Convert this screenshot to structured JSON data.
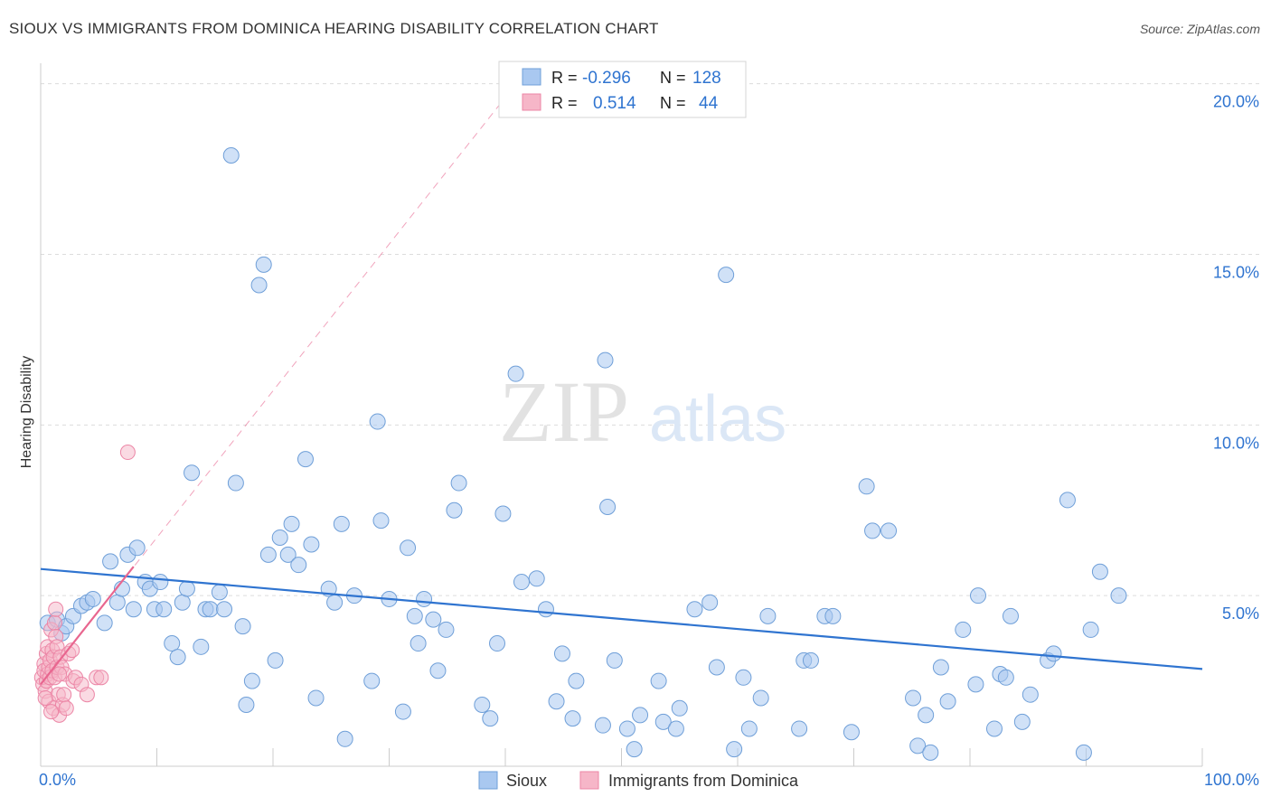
{
  "title": "SIOUX VS IMMIGRANTS FROM DOMINICA HEARING DISABILITY CORRELATION CHART",
  "source": "Source: ZipAtlas.com",
  "watermark": {
    "zip": "ZIP",
    "atlas": "atlas"
  },
  "colors": {
    "sioux_fill": "#a9c8f0",
    "sioux_stroke": "#6f9fd8",
    "sioux_line": "#2f74d0",
    "dominica_fill": "#f6b6c8",
    "dominica_stroke": "#ec86a6",
    "dominica_line": "#e8668f",
    "value_blue": "#2f74d0",
    "grid": "#dcdcdc"
  },
  "chart_data": {
    "type": "scatter",
    "title": "SIOUX VS IMMIGRANTS FROM DOMINICA HEARING DISABILITY CORRELATION CHART",
    "xlabel": "",
    "ylabel": "Hearing Disability",
    "xlim": [
      0,
      100
    ],
    "ylim": [
      0,
      20.6
    ],
    "x_tick_labels": [
      "0.0%",
      "100.0%"
    ],
    "y_ticks": [
      5,
      10,
      15,
      20
    ],
    "y_tick_labels": [
      "5.0%",
      "10.0%",
      "15.0%",
      "20.0%"
    ],
    "grid": true,
    "legend_stats": [
      {
        "label_r": "R =",
        "r": "-0.296",
        "label_n": "N =",
        "n": "128"
      },
      {
        "label_r": "R =",
        "r": "0.514",
        "label_n": "N =",
        "n": "44"
      }
    ],
    "series": [
      {
        "name": "Sioux",
        "trend": {
          "x": [
            0,
            100
          ],
          "y": [
            5.78,
            2.85
          ]
        },
        "points": [
          [
            0.6,
            4.2
          ],
          [
            1.4,
            4.3
          ],
          [
            1.8,
            3.9
          ],
          [
            2.2,
            4.1
          ],
          [
            2.8,
            4.4
          ],
          [
            3.5,
            4.7
          ],
          [
            4.0,
            4.8
          ],
          [
            4.5,
            4.9
          ],
          [
            5.5,
            4.2
          ],
          [
            6.0,
            6.0
          ],
          [
            6.6,
            4.8
          ],
          [
            7.0,
            5.2
          ],
          [
            7.5,
            6.2
          ],
          [
            8.0,
            4.6
          ],
          [
            8.3,
            6.4
          ],
          [
            9.0,
            5.4
          ],
          [
            9.4,
            5.2
          ],
          [
            9.8,
            4.6
          ],
          [
            10.3,
            5.4
          ],
          [
            10.6,
            4.6
          ],
          [
            11.3,
            3.6
          ],
          [
            11.8,
            3.2
          ],
          [
            12.2,
            4.8
          ],
          [
            12.6,
            5.2
          ],
          [
            13.0,
            8.6
          ],
          [
            13.8,
            3.5
          ],
          [
            14.2,
            4.6
          ],
          [
            14.6,
            4.6
          ],
          [
            15.4,
            5.1
          ],
          [
            15.8,
            4.6
          ],
          [
            16.4,
            17.9
          ],
          [
            16.8,
            8.3
          ],
          [
            17.4,
            4.1
          ],
          [
            17.7,
            1.8
          ],
          [
            18.2,
            2.5
          ],
          [
            18.8,
            14.1
          ],
          [
            19.2,
            14.7
          ],
          [
            19.6,
            6.2
          ],
          [
            20.2,
            3.1
          ],
          [
            20.6,
            6.7
          ],
          [
            21.3,
            6.2
          ],
          [
            21.6,
            7.1
          ],
          [
            22.2,
            5.9
          ],
          [
            22.8,
            9.0
          ],
          [
            23.3,
            6.5
          ],
          [
            23.7,
            2.0
          ],
          [
            24.8,
            5.2
          ],
          [
            25.3,
            4.8
          ],
          [
            25.9,
            7.1
          ],
          [
            26.2,
            0.8
          ],
          [
            27.0,
            5.0
          ],
          [
            28.5,
            2.5
          ],
          [
            29.0,
            10.1
          ],
          [
            29.3,
            7.2
          ],
          [
            30.0,
            4.9
          ],
          [
            31.2,
            1.6
          ],
          [
            31.6,
            6.4
          ],
          [
            32.2,
            4.4
          ],
          [
            32.5,
            3.6
          ],
          [
            33.0,
            4.9
          ],
          [
            33.8,
            4.3
          ],
          [
            34.2,
            2.8
          ],
          [
            34.9,
            4.0
          ],
          [
            35.6,
            7.5
          ],
          [
            36.0,
            8.3
          ],
          [
            38.0,
            1.8
          ],
          [
            38.7,
            1.4
          ],
          [
            39.3,
            3.6
          ],
          [
            39.8,
            7.4
          ],
          [
            40.9,
            11.5
          ],
          [
            41.4,
            5.4
          ],
          [
            42.7,
            5.5
          ],
          [
            43.5,
            4.6
          ],
          [
            44.4,
            1.9
          ],
          [
            44.9,
            3.3
          ],
          [
            45.8,
            1.4
          ],
          [
            46.1,
            2.5
          ],
          [
            48.4,
            1.2
          ],
          [
            48.6,
            11.9
          ],
          [
            48.8,
            7.6
          ],
          [
            49.4,
            3.1
          ],
          [
            50.5,
            1.1
          ],
          [
            51.1,
            0.5
          ],
          [
            51.6,
            1.5
          ],
          [
            53.2,
            2.5
          ],
          [
            53.6,
            1.3
          ],
          [
            54.7,
            1.1
          ],
          [
            55.0,
            1.7
          ],
          [
            56.3,
            4.6
          ],
          [
            57.6,
            4.8
          ],
          [
            58.2,
            2.9
          ],
          [
            59.0,
            14.4
          ],
          [
            59.7,
            0.5
          ],
          [
            60.5,
            2.6
          ],
          [
            61.0,
            1.1
          ],
          [
            62.0,
            2.0
          ],
          [
            62.6,
            4.4
          ],
          [
            65.3,
            1.1
          ],
          [
            65.7,
            3.1
          ],
          [
            66.3,
            3.1
          ],
          [
            67.5,
            4.4
          ],
          [
            68.2,
            4.4
          ],
          [
            69.8,
            1.0
          ],
          [
            71.1,
            8.2
          ],
          [
            71.6,
            6.9
          ],
          [
            73.0,
            6.9
          ],
          [
            75.1,
            2.0
          ],
          [
            75.5,
            0.6
          ],
          [
            76.2,
            1.5
          ],
          [
            76.6,
            0.4
          ],
          [
            77.5,
            2.9
          ],
          [
            78.1,
            1.9
          ],
          [
            79.4,
            4.0
          ],
          [
            80.5,
            2.4
          ],
          [
            80.7,
            5.0
          ],
          [
            82.1,
            1.1
          ],
          [
            82.6,
            2.7
          ],
          [
            83.1,
            2.6
          ],
          [
            83.5,
            4.4
          ],
          [
            84.5,
            1.3
          ],
          [
            85.2,
            2.1
          ],
          [
            86.7,
            3.1
          ],
          [
            87.2,
            3.3
          ],
          [
            88.4,
            7.8
          ],
          [
            89.8,
            0.4
          ],
          [
            90.4,
            4.0
          ],
          [
            91.2,
            5.7
          ],
          [
            92.8,
            5.0
          ]
        ]
      },
      {
        "name": "Immigrants from Dominica",
        "trend": {
          "x": [
            0,
            8.0
          ],
          "y": [
            2.4,
            5.85
          ]
        },
        "trend_extension": {
          "x": [
            0,
            40
          ],
          "y": [
            2.4,
            19.6
          ]
        },
        "points": [
          [
            0.1,
            2.6
          ],
          [
            0.2,
            2.4
          ],
          [
            0.3,
            3.0
          ],
          [
            0.3,
            2.8
          ],
          [
            0.4,
            2.2
          ],
          [
            0.5,
            2.5
          ],
          [
            0.5,
            3.3
          ],
          [
            0.6,
            3.5
          ],
          [
            0.6,
            2.7
          ],
          [
            0.7,
            2.9
          ],
          [
            0.7,
            1.9
          ],
          [
            0.8,
            3.1
          ],
          [
            0.8,
            2.6
          ],
          [
            0.9,
            4.0
          ],
          [
            1.0,
            3.4
          ],
          [
            1.0,
            2.8
          ],
          [
            1.1,
            1.7
          ],
          [
            1.1,
            3.2
          ],
          [
            1.2,
            2.6
          ],
          [
            1.2,
            4.2
          ],
          [
            1.3,
            3.8
          ],
          [
            1.3,
            4.6
          ],
          [
            1.4,
            2.9
          ],
          [
            1.4,
            3.5
          ],
          [
            1.5,
            2.1
          ],
          [
            1.6,
            1.5
          ],
          [
            1.7,
            3.2
          ],
          [
            1.8,
            2.9
          ],
          [
            1.9,
            1.8
          ],
          [
            2.0,
            2.1
          ],
          [
            2.1,
            2.7
          ],
          [
            2.2,
            1.7
          ],
          [
            2.4,
            3.3
          ],
          [
            2.7,
            3.4
          ],
          [
            2.8,
            2.5
          ],
          [
            3.0,
            2.6
          ],
          [
            3.5,
            2.4
          ],
          [
            4.0,
            2.1
          ],
          [
            4.8,
            2.6
          ],
          [
            5.2,
            2.6
          ],
          [
            7.5,
            9.2
          ],
          [
            0.4,
            2.0
          ],
          [
            0.9,
            1.6
          ],
          [
            1.6,
            2.7
          ]
        ]
      }
    ]
  },
  "legend_bottom": [
    "Sioux",
    "Immigrants from Dominica"
  ]
}
